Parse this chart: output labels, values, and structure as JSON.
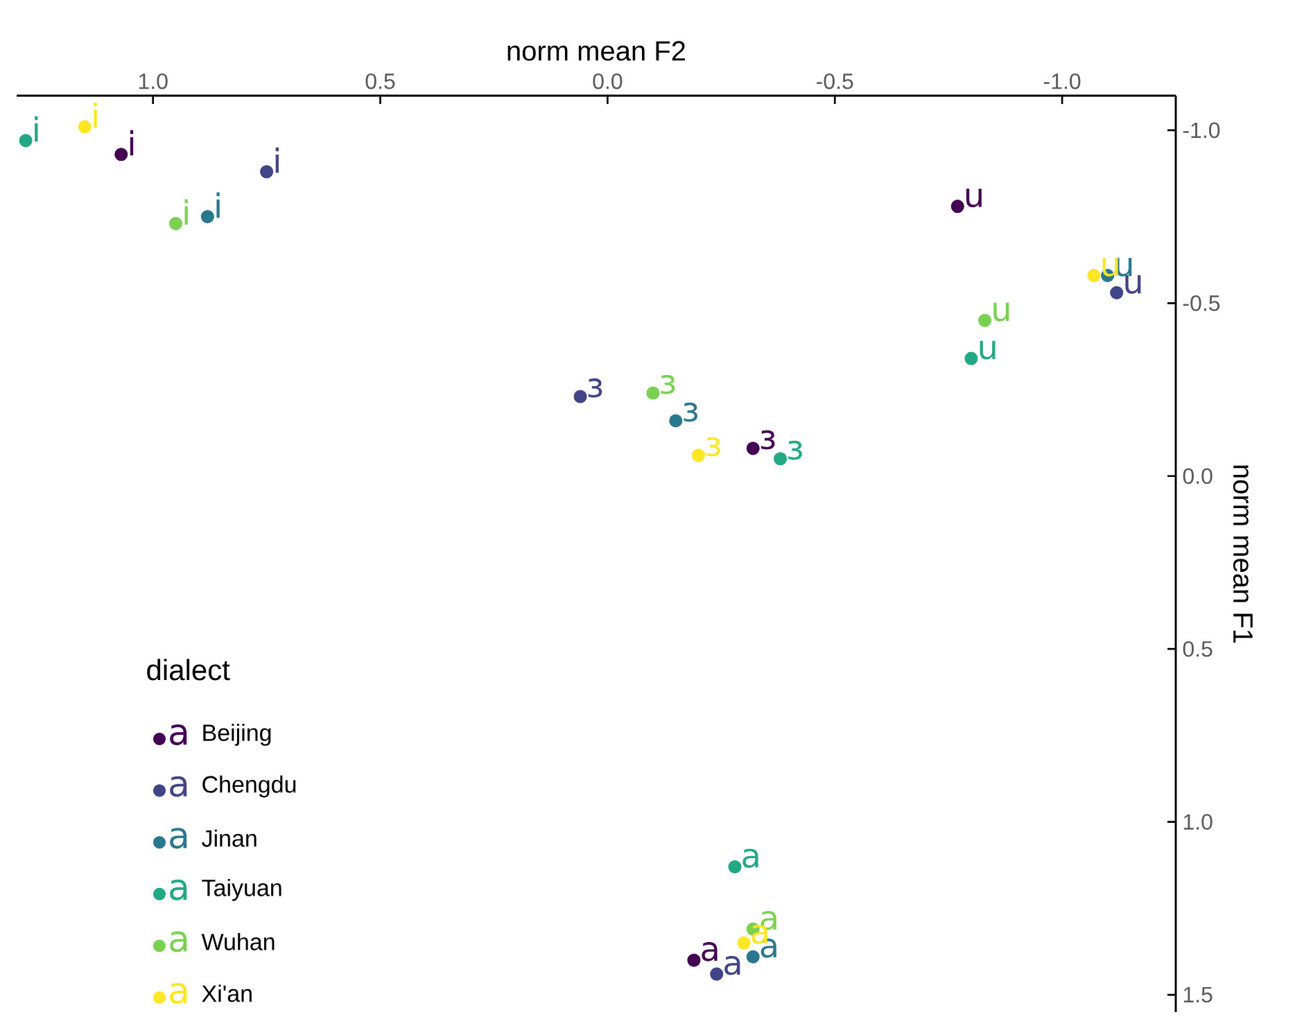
{
  "chart_data": {
    "type": "scatter",
    "xlabel": "norm mean F2",
    "ylabel": "norm mean F1",
    "legend_title": "dialect",
    "legend": "bottom left",
    "marker": "circle",
    "grid": false,
    "xlim": [
      1.3,
      -1.25
    ],
    "ylim": [
      1.55,
      -1.1
    ],
    "xticks": [
      {
        "value": 1,
        "label": "1.0"
      },
      {
        "value": 0.5,
        "label": "0.5"
      },
      {
        "value": 0,
        "label": "0.0"
      },
      {
        "value": -0.5,
        "label": "-0.5"
      },
      {
        "value": -1,
        "label": "-1.0"
      }
    ],
    "yticks": [
      {
        "value": -1,
        "label": "-1.0"
      },
      {
        "value": -0.5,
        "label": "-0.5"
      },
      {
        "value": 0,
        "label": "0.0"
      },
      {
        "value": 0.5,
        "label": "0.5"
      },
      {
        "value": 1,
        "label": "1.0"
      },
      {
        "value": 1.5,
        "label": "1.5"
      }
    ],
    "series": [
      {
        "name": "Beijing",
        "color": "#440154",
        "x": [
          1.07,
          -0.77,
          -0.32,
          -0.19
        ],
        "values": [
          -0.93,
          -0.78,
          -0.08,
          1.4
        ],
        "value_labels": [
          "i",
          "u",
          "ɜ",
          "a"
        ]
      },
      {
        "name": "Chengdu",
        "color": "#414487",
        "x": [
          0.75,
          -1.12,
          0.06,
          -0.24
        ],
        "values": [
          -0.88,
          -0.53,
          -0.23,
          1.44
        ],
        "value_labels": [
          "i",
          "u",
          "ɜ",
          "a"
        ]
      },
      {
        "name": "Jinan",
        "color": "#2a788e",
        "x": [
          0.88,
          -1.1,
          -0.15,
          -0.32
        ],
        "values": [
          -0.75,
          -0.58,
          -0.16,
          1.39
        ],
        "value_labels": [
          "i",
          "u",
          "ɜ",
          "a"
        ]
      },
      {
        "name": "Taiyuan",
        "color": "#22a884",
        "x": [
          1.28,
          -0.8,
          -0.38,
          -0.28
        ],
        "values": [
          -0.97,
          -0.34,
          -0.05,
          1.13
        ],
        "value_labels": [
          "i",
          "u",
          "ɜ",
          "a"
        ]
      },
      {
        "name": "Wuhan",
        "color": "#7ad151",
        "x": [
          0.95,
          -0.83,
          -0.1,
          -0.32
        ],
        "values": [
          -0.73,
          -0.45,
          -0.24,
          1.31
        ],
        "value_labels": [
          "i",
          "u",
          "ɜ",
          "a"
        ]
      },
      {
        "name": "Xi'an",
        "color": "#fde725",
        "x": [
          1.15,
          -1.07,
          -0.2,
          -0.3
        ],
        "values": [
          -1.01,
          -0.58,
          -0.06,
          1.35
        ],
        "value_labels": [
          "i",
          "u",
          "ɜ",
          "a"
        ]
      }
    ]
  }
}
